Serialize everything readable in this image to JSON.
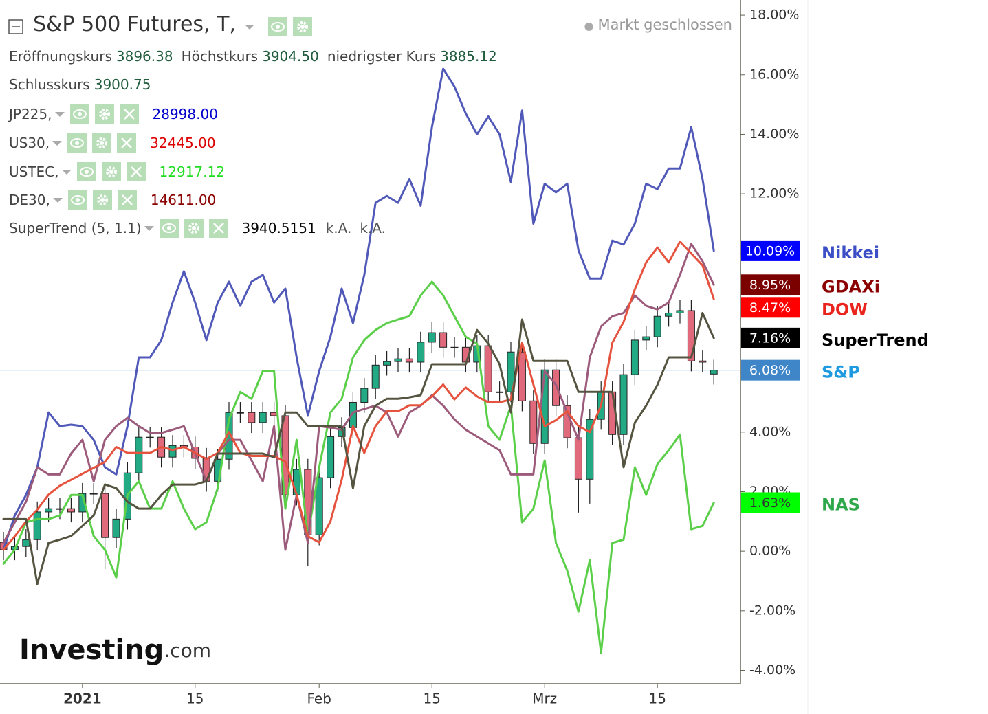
{
  "chart_data": {
    "type": "candlestick",
    "categories": [
      null,
      null,
      null,
      null,
      null,
      null,
      null,
      "2021",
      null,
      null,
      null,
      null,
      null,
      null,
      null,
      null,
      null,
      "15",
      null,
      null,
      null,
      null,
      null,
      null,
      null,
      null,
      null,
      null,
      "Feb",
      null,
      null,
      null,
      null,
      null,
      null,
      null,
      null,
      null,
      "15",
      null,
      null,
      null,
      null,
      null,
      null,
      null,
      null,
      null,
      "Mrz",
      null,
      null,
      null,
      null,
      null,
      null,
      null,
      null,
      null,
      "15",
      null,
      null,
      null,
      null,
      null
    ],
    "ylim": [
      -4.45,
      18.51
    ],
    "yticks": [
      {
        "value": 18,
        "label": "18.00%"
      },
      {
        "value": 16,
        "label": "16.00%"
      },
      {
        "value": 14,
        "label": "14.00%"
      },
      {
        "value": 12,
        "label": "12.00%"
      },
      {
        "value": 10,
        "label": "10.00%"
      },
      {
        "value": 8,
        "label": "8.00%"
      },
      {
        "value": 6,
        "label": "6.00%"
      },
      {
        "value": 4,
        "label": "4.00%"
      },
      {
        "value": 2,
        "label": "2.00%"
      },
      {
        "value": 0,
        "label": "0.00%"
      },
      {
        "value": -2,
        "label": "-2.00%"
      },
      {
        "value": -4,
        "label": "-4.00%"
      }
    ],
    "candles": {
      "name": "S&P",
      "up_color": "#22aa84",
      "down_color": "#e06a7c",
      "line_color": "#9cc5ea",
      "badge_color": "#3f86c8",
      "badge_text_color": "#ffffff",
      "label_color": "#1e9be0",
      "last_value_label": "6.08%",
      "open": [
        0.3,
        0.05,
        0.16,
        0.39,
        1.32,
        1.43,
        1.43,
        1.32,
        1.94,
        1.94,
        0.46,
        1.08,
        2.63,
        3.83,
        3.83,
        3.16,
        3.55,
        3.5,
        3.12,
        2.35,
        3.09,
        4.66,
        4.66,
        4.32,
        4.66,
        4.55,
        1.89,
        2.75,
        0.55,
        2.47,
        3.85,
        4.15,
        5.0,
        5.47,
        6.25,
        6.37,
        6.46,
        6.35,
        7.02,
        7.34,
        6.85,
        6.85,
        6.35,
        6.9,
        5.35,
        5.35,
        6.69,
        5.05,
        3.62,
        6.09,
        4.89,
        3.81,
        2.42,
        4.43,
        5.35,
        3.92,
        5.93,
        7.09,
        7.2,
        7.89,
        8.0,
        8.08,
        6.39,
        5.95
      ],
      "close": [
        0.05,
        0.16,
        0.39,
        1.32,
        1.43,
        1.43,
        1.32,
        1.94,
        1.94,
        0.46,
        1.08,
        2.63,
        3.83,
        3.83,
        3.16,
        3.55,
        3.5,
        3.12,
        2.35,
        3.09,
        4.66,
        4.66,
        4.32,
        4.66,
        4.55,
        1.89,
        2.75,
        0.55,
        2.47,
        3.85,
        4.15,
        5.0,
        5.47,
        6.25,
        6.37,
        6.46,
        6.35,
        7.02,
        7.34,
        6.85,
        6.85,
        6.35,
        6.9,
        5.35,
        5.35,
        6.69,
        5.05,
        3.62,
        6.09,
        4.89,
        3.81,
        2.42,
        4.43,
        5.35,
        3.92,
        5.93,
        7.09,
        7.2,
        7.89,
        8.0,
        8.08,
        6.39,
        6.35,
        6.08
      ],
      "high": [
        0.65,
        0.51,
        0.74,
        1.67,
        1.78,
        1.78,
        1.78,
        2.29,
        2.29,
        2.29,
        1.43,
        2.98,
        4.18,
        4.18,
        4.18,
        3.9,
        3.9,
        3.85,
        3.47,
        3.44,
        5.01,
        5.01,
        5.01,
        5.01,
        5.01,
        4.9,
        3.1,
        3.1,
        2.82,
        4.2,
        4.5,
        5.35,
        5.82,
        6.6,
        6.72,
        6.81,
        6.81,
        7.37,
        7.69,
        7.69,
        7.2,
        7.2,
        7.25,
        7.25,
        5.7,
        7.04,
        7.04,
        5.4,
        6.44,
        6.44,
        5.24,
        4.16,
        4.78,
        5.7,
        5.7,
        6.28,
        7.44,
        7.55,
        8.24,
        8.35,
        8.43,
        8.43,
        6.74,
        6.43
      ],
      "low": [
        -0.3,
        -0.3,
        -0.19,
        0.04,
        0.97,
        1.08,
        0.97,
        0.97,
        1.59,
        -0.6,
        0.11,
        0.73,
        2.28,
        3.48,
        2.81,
        2.81,
        3.15,
        2.77,
        2.0,
        2.0,
        2.74,
        4.31,
        3.97,
        3.97,
        4.2,
        1.54,
        1.54,
        -0.5,
        0.2,
        2.12,
        3.5,
        3.8,
        4.65,
        5.12,
        5.9,
        6.02,
        6.0,
        6.0,
        6.67,
        6.5,
        6.5,
        6.0,
        6.0,
        5.0,
        5.0,
        5.0,
        4.7,
        3.27,
        3.27,
        4.54,
        3.46,
        1.3,
        1.6,
        4.08,
        3.57,
        3.57,
        5.58,
        6.74,
        6.85,
        7.54,
        7.65,
        6.04,
        6.0,
        5.6
      ]
    },
    "series": [
      {
        "name": "Nikkei",
        "color": "#5058b8",
        "badge_color": "#0000ff",
        "badge_text_color": "#ffffff",
        "label_color": "#3c4fc6",
        "last_value_label": "10.09%",
        "values": [
          0.05,
          1.2,
          1.89,
          2.82,
          4.66,
          4.2,
          4.25,
          4.2,
          3.74,
          2.82,
          2.58,
          4.2,
          6.51,
          6.51,
          7.09,
          8.35,
          9.4,
          8.35,
          7.09,
          8.35,
          9.05,
          8.24,
          9.05,
          9.28,
          8.35,
          8.82,
          6.51,
          4.55,
          6.05,
          7.2,
          8.82,
          7.66,
          9.28,
          11.7,
          11.93,
          11.7,
          12.5,
          11.6,
          14.24,
          16.2,
          15.6,
          14.7,
          14.0,
          14.6,
          14.0,
          12.4,
          14.8,
          11.0,
          12.34,
          12.05,
          12.34,
          10.1,
          9.16,
          9.16,
          10.43,
          10.3,
          11.0,
          12.34,
          12.16,
          12.85,
          12.85,
          14.24,
          12.5,
          10.09
        ]
      },
      {
        "name": "NAS",
        "color": "#5bcf4a",
        "badge_color": "#00ff00",
        "badge_text_color": "#333333",
        "label_color": "#2ea84a",
        "last_value_label": "1.63%",
        "values": [
          -0.42,
          0.05,
          0.97,
          1.08,
          1.08,
          1.2,
          1.89,
          1.89,
          0.51,
          0.05,
          -0.88,
          1.89,
          2.35,
          1.43,
          1.43,
          2.35,
          1.43,
          0.74,
          0.97,
          2.12,
          4.43,
          5.35,
          5.12,
          6.05,
          6.05,
          1.43,
          3.74,
          0.51,
          2.82,
          4.66,
          5.12,
          6.51,
          7.09,
          7.43,
          7.66,
          7.78,
          7.89,
          8.59,
          9.05,
          8.59,
          7.89,
          7.2,
          6.97,
          4.2,
          3.74,
          4.89,
          0.97,
          1.43,
          3.05,
          0.28,
          -0.65,
          -2.03,
          -0.3,
          -3.42,
          0.28,
          0.39,
          2.82,
          1.89,
          2.93,
          3.39,
          3.92,
          0.74,
          0.85,
          1.63
        ]
      },
      {
        "name": "GDAXi",
        "color": "#9c5b7b",
        "badge_color": "#7b0000",
        "badge_text_color": "#ffffff",
        "label_color": "#8b0000",
        "last_value_label": "8.95%",
        "values": [
          0.28,
          0.97,
          1.66,
          2.82,
          2.58,
          2.58,
          3.28,
          3.74,
          2.35,
          3.74,
          4.2,
          4.48,
          4.2,
          3.97,
          3.97,
          4.08,
          4.2,
          3.28,
          2.35,
          3.28,
          3.74,
          3.74,
          3.05,
          2.35,
          4.2,
          0.05,
          1.89,
          0.28,
          4.2,
          4.15,
          4.08,
          4.66,
          4.78,
          4.89,
          4.66,
          3.85,
          4.66,
          4.89,
          5.24,
          4.89,
          4.43,
          4.08,
          3.85,
          3.62,
          3.39,
          2.58,
          2.58,
          2.58,
          6.05,
          5.59,
          4.66,
          3.74,
          6.51,
          7.55,
          7.89,
          8.0,
          8.59,
          8.24,
          8.12,
          8.35,
          9.28,
          10.32,
          9.74,
          8.95
        ]
      },
      {
        "name": "DOW",
        "color": "#e5533e",
        "badge_color": "#ff0000",
        "badge_text_color": "#ffffff",
        "label_color": "#e8241c",
        "last_value_label": "8.47%",
        "values": [
          0.05,
          0.5,
          1.0,
          1.4,
          1.9,
          2.2,
          2.4,
          2.6,
          2.8,
          3.0,
          3.5,
          3.3,
          3.3,
          3.3,
          3.5,
          3.4,
          3.5,
          3.3,
          3.1,
          3.3,
          4.0,
          3.3,
          3.2,
          3.2,
          3.2,
          3.0,
          1.9,
          0.5,
          0.3,
          1.0,
          2.4,
          4.2,
          3.3,
          4.2,
          4.7,
          4.7,
          4.9,
          4.9,
          5.2,
          5.6,
          5.1,
          5.5,
          5.2,
          5.0,
          5.0,
          5.1,
          7.0,
          5.6,
          4.2,
          4.4,
          4.7,
          4.2,
          4.0,
          4.9,
          7.0,
          7.7,
          8.8,
          9.7,
          10.2,
          9.7,
          10.4,
          10.0,
          9.6,
          8.47
        ]
      },
      {
        "name": "SuperTrend",
        "color": "#545440",
        "badge_color": "#000000",
        "badge_text_color": "#ffffff",
        "label_color": "#000000",
        "last_value_label": "7.16%",
        "values": [
          1.08,
          1.08,
          1.08,
          -1.1,
          0.28,
          0.39,
          0.51,
          0.85,
          1.2,
          2.24,
          2.12,
          1.66,
          1.43,
          1.43,
          1.89,
          2.24,
          2.24,
          2.24,
          2.35,
          3.28,
          3.28,
          3.28,
          3.28,
          3.28,
          3.16,
          4.66,
          4.66,
          4.2,
          4.2,
          4.2,
          4.2,
          2.12,
          4.2,
          4.89,
          5.12,
          5.12,
          5.17,
          5.24,
          6.28,
          6.28,
          6.28,
          6.28,
          7.43,
          6.97,
          6.28,
          4.66,
          7.78,
          6.39,
          6.39,
          6.39,
          6.39,
          5.35,
          5.35,
          5.35,
          5.35,
          2.82,
          4.32,
          4.89,
          5.59,
          6.51,
          6.51,
          6.51,
          8.0,
          7.16
        ]
      }
    ]
  },
  "header": {
    "title": "S&P 500 Futures, T,",
    "status": "Markt geschlossen",
    "ohlc": [
      {
        "label": "Eröffnungskurs",
        "value": "3896.38"
      },
      {
        "label": "Höchstkurs",
        "value": "3904.50"
      },
      {
        "label": "niedrigster Kurs",
        "value": "3885.12"
      },
      {
        "label": "Schlusskurs",
        "value": "3900.75"
      }
    ],
    "indicators": [
      {
        "name": "JP225,",
        "value": "28998.00",
        "color": "#0000cc"
      },
      {
        "name": "US30,",
        "value": "32445.00",
        "color": "#dd0000"
      },
      {
        "name": "USTEC,",
        "value": "12917.12",
        "color": "#22dd22"
      },
      {
        "name": "DE30,",
        "value": "14611.00",
        "color": "#8b0000"
      },
      {
        "name": "SuperTrend (5, 1.1)",
        "value": "3940.5151",
        "color": "#000000",
        "extra": [
          "k.A.",
          "k.A."
        ]
      }
    ]
  },
  "watermark": {
    "brand": "Investing",
    "suffix": ".com"
  }
}
